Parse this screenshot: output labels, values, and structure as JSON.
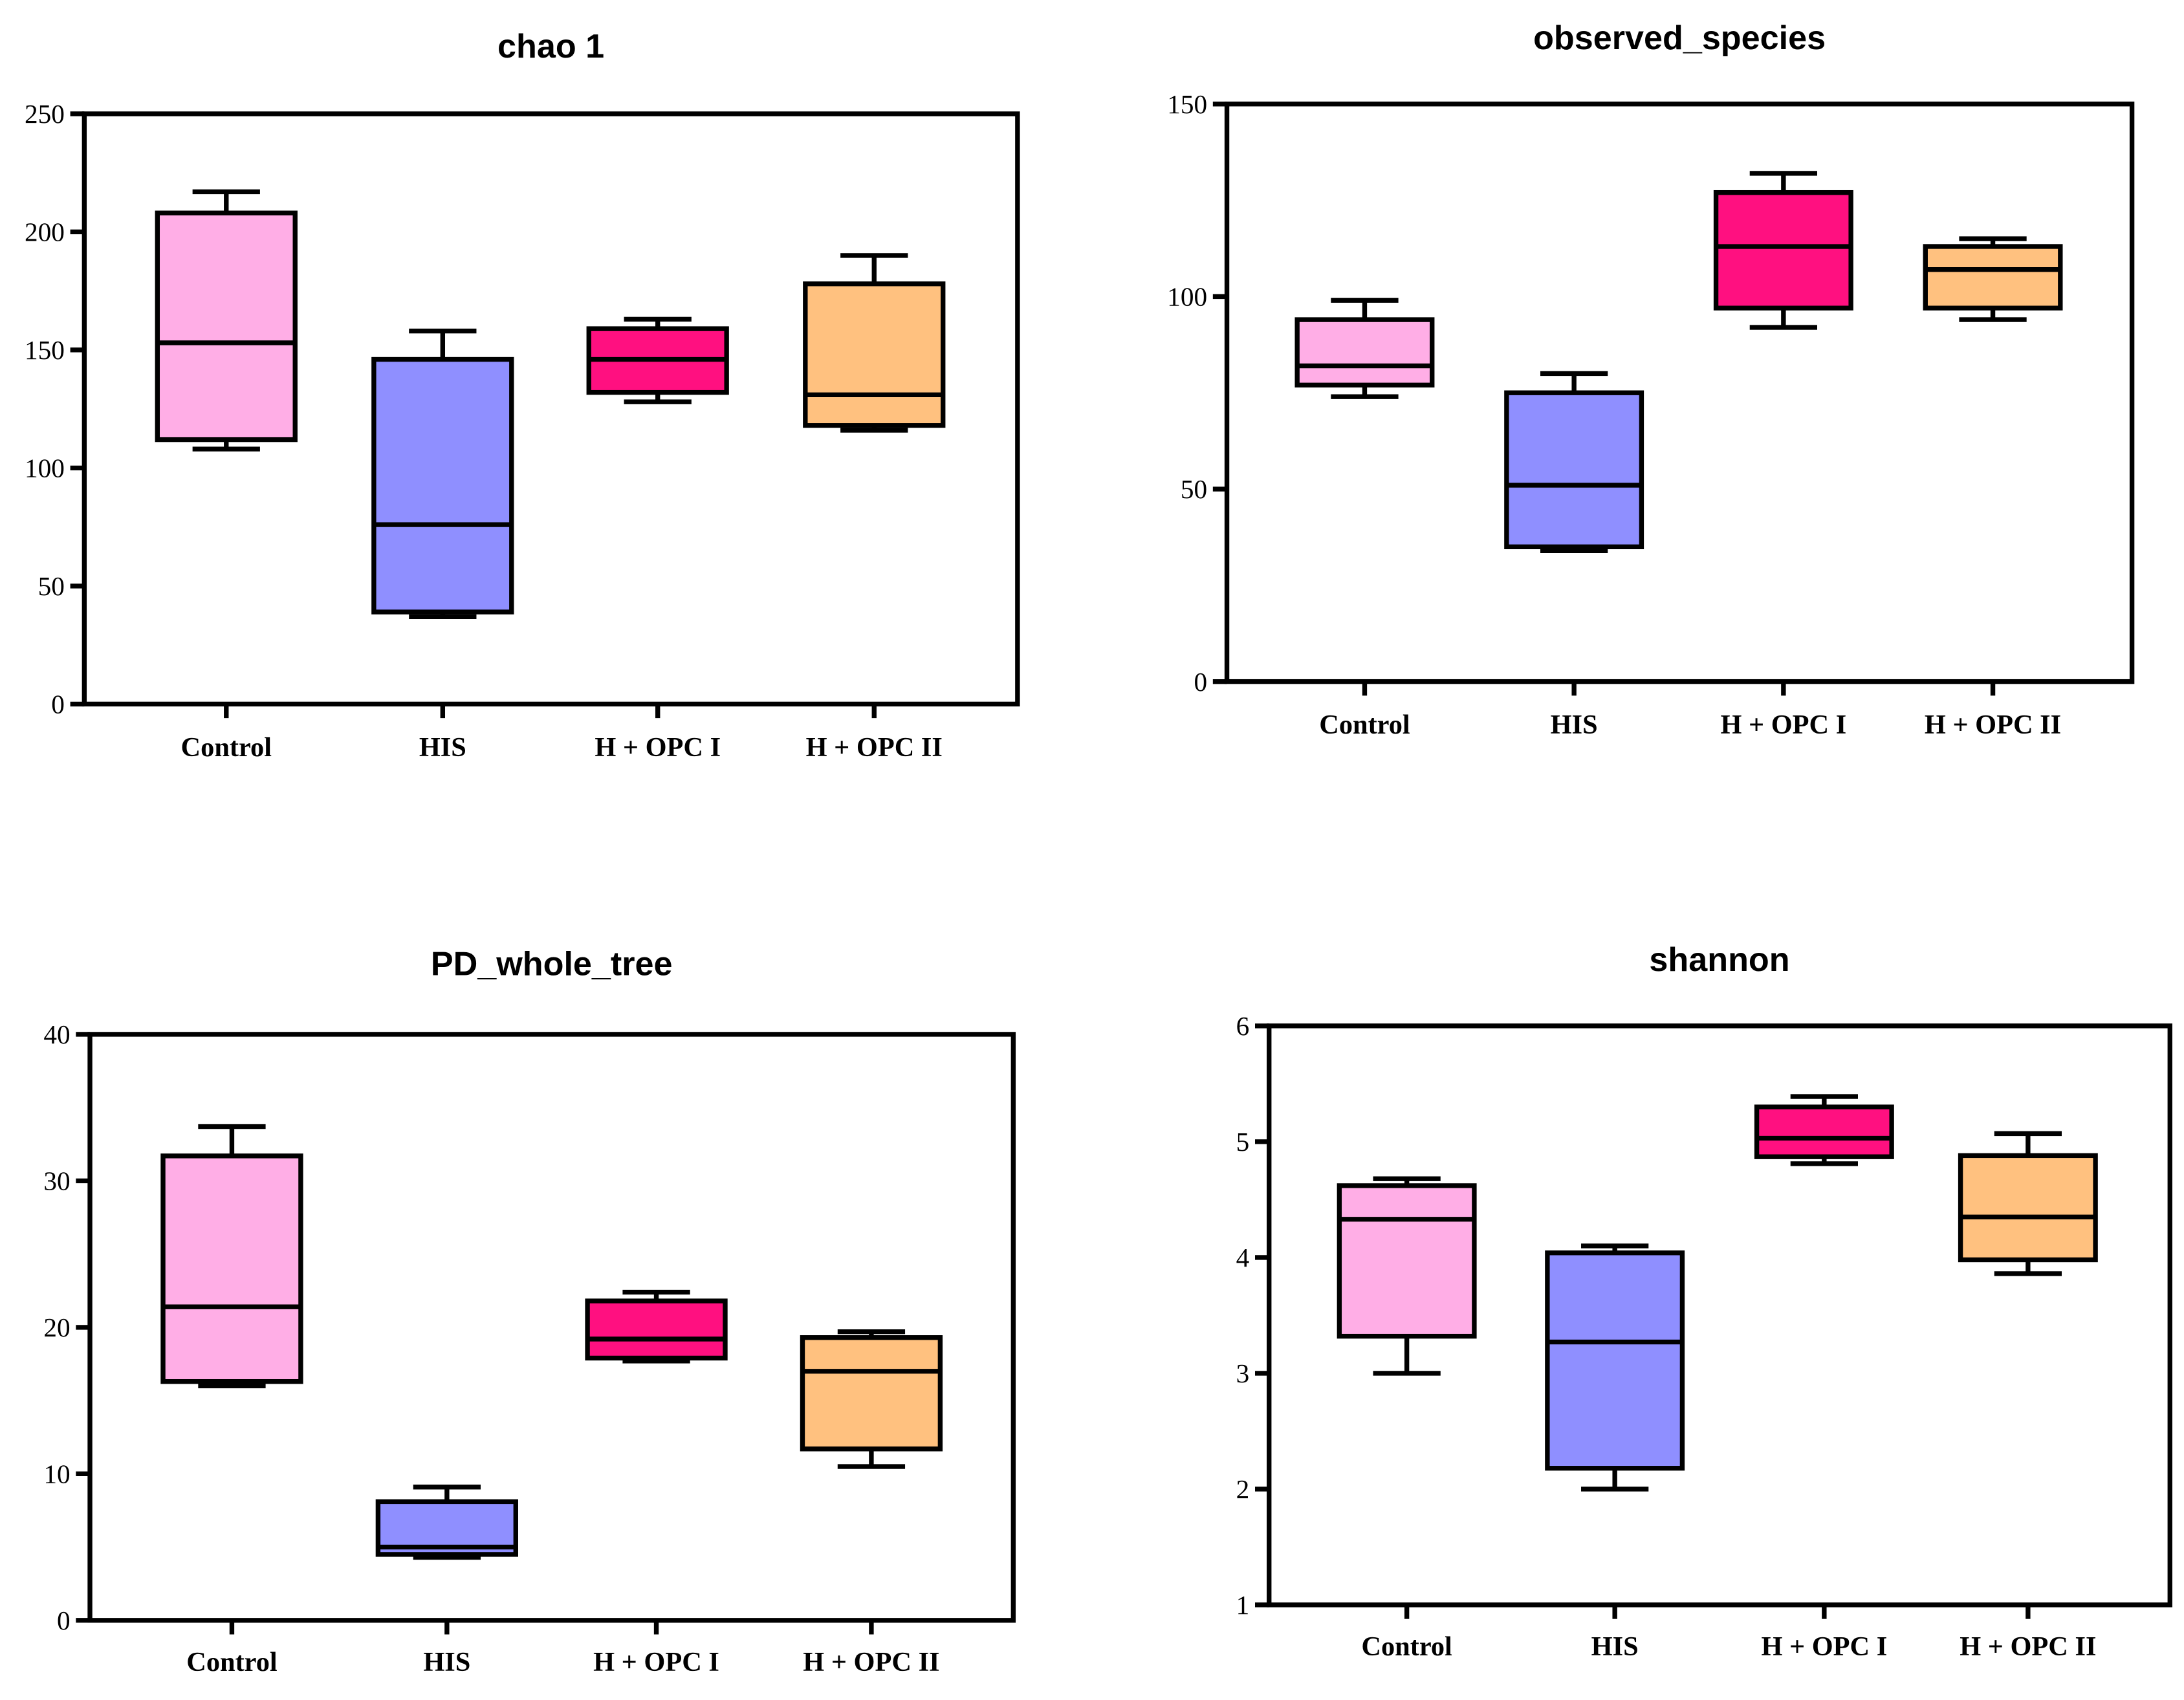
{
  "chart_data": [
    {
      "type": "box",
      "title": "chao 1",
      "categories": [
        "Control",
        "HIS",
        "H + OPC I",
        "H + OPC II"
      ],
      "ylim": [
        0,
        250
      ],
      "yticks": [
        0,
        50,
        100,
        150,
        200,
        250
      ],
      "grid": false,
      "boxes": [
        {
          "min": 108,
          "q1": 112,
          "median": 153,
          "q3": 208,
          "max": 217
        },
        {
          "min": 37,
          "q1": 39,
          "median": 76,
          "q3": 146,
          "max": 158
        },
        {
          "min": 128,
          "q1": 132,
          "median": 146,
          "q3": 159,
          "max": 163
        },
        {
          "min": 116,
          "q1": 118,
          "median": 131,
          "q3": 178,
          "max": 190
        }
      ]
    },
    {
      "type": "box",
      "title": "observed_species",
      "categories": [
        "Control",
        "HIS",
        "H + OPC I",
        "H + OPC II"
      ],
      "ylim": [
        0,
        150
      ],
      "yticks": [
        0,
        50,
        100,
        150
      ],
      "grid": false,
      "boxes": [
        {
          "min": 74,
          "q1": 77,
          "median": 82,
          "q3": 94,
          "max": 99
        },
        {
          "min": 34,
          "q1": 35,
          "median": 51,
          "q3": 75,
          "max": 80
        },
        {
          "min": 92,
          "q1": 97,
          "median": 113,
          "q3": 127,
          "max": 132
        },
        {
          "min": 94,
          "q1": 97,
          "median": 107,
          "q3": 113,
          "max": 115
        }
      ]
    },
    {
      "type": "box",
      "title": "PD_whole_tree",
      "categories": [
        "Control",
        "HIS",
        "H + OPC I",
        "H + OPC II"
      ],
      "ylim": [
        0,
        40
      ],
      "yticks": [
        0,
        10,
        20,
        30,
        40
      ],
      "grid": false,
      "boxes": [
        {
          "min": 16.0,
          "q1": 16.3,
          "median": 21.4,
          "q3": 31.7,
          "max": 33.7
        },
        {
          "min": 4.3,
          "q1": 4.5,
          "median": 5.0,
          "q3": 8.1,
          "max": 9.1
        },
        {
          "min": 17.7,
          "q1": 17.9,
          "median": 19.2,
          "q3": 21.8,
          "max": 22.4
        },
        {
          "min": 10.5,
          "q1": 11.7,
          "median": 17.0,
          "q3": 19.3,
          "max": 19.7
        }
      ]
    },
    {
      "type": "box",
      "title": "shannon",
      "categories": [
        "Control",
        "HIS",
        "H + OPC I",
        "H + OPC II"
      ],
      "ylim": [
        1,
        6
      ],
      "yticks": [
        1,
        2,
        3,
        4,
        5,
        6
      ],
      "grid": false,
      "boxes": [
        {
          "min": 3.0,
          "q1": 3.32,
          "median": 4.33,
          "q3": 4.62,
          "max": 4.68
        },
        {
          "min": 2.0,
          "q1": 2.18,
          "median": 3.27,
          "q3": 4.04,
          "max": 4.1
        },
        {
          "min": 4.81,
          "q1": 4.87,
          "median": 5.03,
          "q3": 5.3,
          "max": 5.39
        },
        {
          "min": 3.86,
          "q1": 3.98,
          "median": 4.35,
          "q3": 4.88,
          "max": 5.07
        }
      ]
    }
  ],
  "colors": {
    "Control": "#ffaee6",
    "HIS": "#8f8fff",
    "H + OPC I": "#ff1080",
    "H + OPC II": "#ffc17f",
    "stroke": "#000000"
  }
}
